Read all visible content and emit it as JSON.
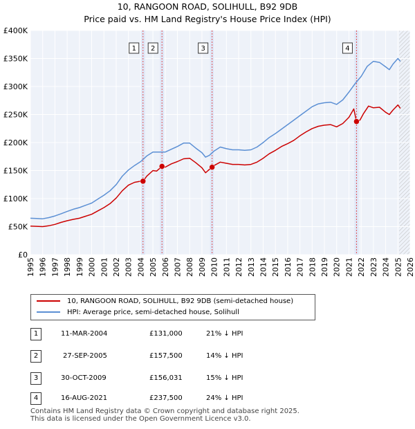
{
  "header": {
    "title": "10, RANGOON ROAD, SOLIHULL, B92 9DB",
    "subtitle": "Price paid vs. HM Land Registry's House Price Index (HPI)"
  },
  "chart_data": {
    "type": "line",
    "title": "10, RANGOON ROAD, SOLIHULL, B92 9DB",
    "subtitle": "Price paid vs. HM Land Registry's House Price Index (HPI)",
    "xlabel": "",
    "ylabel": "",
    "xlim": [
      1995,
      2026
    ],
    "ylim": [
      0,
      400000
    ],
    "y_ticks": [
      0,
      50000,
      100000,
      150000,
      200000,
      250000,
      300000,
      350000,
      400000
    ],
    "y_tick_labels": [
      "£0",
      "£50K",
      "£100K",
      "£150K",
      "£200K",
      "£250K",
      "£300K",
      "£350K",
      "£400K"
    ],
    "x_ticks": [
      1995,
      1996,
      1997,
      1998,
      1999,
      2000,
      2001,
      2002,
      2003,
      2004,
      2005,
      2006,
      2007,
      2008,
      2009,
      2010,
      2011,
      2012,
      2013,
      2014,
      2015,
      2016,
      2017,
      2018,
      2019,
      2020,
      2021,
      2022,
      2023,
      2024,
      2025,
      2026
    ],
    "x_tick_labels": [
      "1995",
      "1996",
      "1997",
      "1998",
      "1999",
      "2000",
      "2001",
      "2002",
      "2003",
      "2004",
      "2005",
      "2006",
      "2007",
      "2008",
      "2009",
      "2010",
      "2011",
      "2012",
      "2013",
      "2014",
      "2015",
      "2016",
      "2017",
      "2018",
      "2019",
      "2020",
      "2021",
      "2022",
      "2023",
      "2024",
      "2025",
      "2026"
    ],
    "grid": true,
    "hatched_from": 2025.1,
    "series": [
      {
        "name": "10, RANGOON ROAD, SOLIHULL, B92 9DB (semi-detached house)",
        "color": "#cc0000",
        "points": [
          [
            1995.0,
            51000
          ],
          [
            1995.5,
            50500
          ],
          [
            1996.0,
            50000
          ],
          [
            1996.5,
            51500
          ],
          [
            1997.0,
            54000
          ],
          [
            1997.5,
            57500
          ],
          [
            1998.0,
            60500
          ],
          [
            1998.5,
            63000
          ],
          [
            1999.0,
            65000
          ],
          [
            1999.5,
            68500
          ],
          [
            2000.0,
            72000
          ],
          [
            2000.5,
            78000
          ],
          [
            2001.0,
            84000
          ],
          [
            2001.5,
            91000
          ],
          [
            2002.0,
            101000
          ],
          [
            2002.5,
            114000
          ],
          [
            2003.0,
            124000
          ],
          [
            2003.5,
            129000
          ],
          [
            2004.0,
            131000
          ],
          [
            2004.2,
            131000
          ],
          [
            2004.5,
            140000
          ],
          [
            2005.0,
            150000
          ],
          [
            2005.3,
            149000
          ],
          [
            2005.74,
            157500
          ],
          [
            2006.0,
            156000
          ],
          [
            2006.5,
            162000
          ],
          [
            2007.0,
            166000
          ],
          [
            2007.5,
            171000
          ],
          [
            2008.0,
            172000
          ],
          [
            2008.5,
            164000
          ],
          [
            2009.0,
            155000
          ],
          [
            2009.3,
            146000
          ],
          [
            2009.5,
            150000
          ],
          [
            2009.83,
            156031
          ],
          [
            2010.0,
            159000
          ],
          [
            2010.5,
            165000
          ],
          [
            2011.0,
            163000
          ],
          [
            2011.5,
            161000
          ],
          [
            2012.0,
            161000
          ],
          [
            2012.5,
            160000
          ],
          [
            2013.0,
            161000
          ],
          [
            2013.5,
            165000
          ],
          [
            2014.0,
            172000
          ],
          [
            2014.5,
            180000
          ],
          [
            2015.0,
            186000
          ],
          [
            2015.5,
            193000
          ],
          [
            2016.0,
            198000
          ],
          [
            2016.5,
            204000
          ],
          [
            2017.0,
            212000
          ],
          [
            2017.5,
            219000
          ],
          [
            2018.0,
            225000
          ],
          [
            2018.5,
            229000
          ],
          [
            2019.0,
            231000
          ],
          [
            2019.5,
            232000
          ],
          [
            2020.0,
            228000
          ],
          [
            2020.5,
            234000
          ],
          [
            2021.0,
            245000
          ],
          [
            2021.4,
            260000
          ],
          [
            2021.62,
            237500
          ],
          [
            2021.9,
            240000
          ],
          [
            2022.2,
            252000
          ],
          [
            2022.6,
            265000
          ],
          [
            2023.0,
            262000
          ],
          [
            2023.5,
            263000
          ],
          [
            2024.0,
            254000
          ],
          [
            2024.3,
            250000
          ],
          [
            2024.6,
            258000
          ],
          [
            2025.0,
            267000
          ],
          [
            2025.2,
            261000
          ]
        ]
      },
      {
        "name": "HPI: Average price, semi-detached house, Solihull",
        "color": "#5b8fd4",
        "points": [
          [
            1995.0,
            65000
          ],
          [
            1995.5,
            64500
          ],
          [
            1996.0,
            64000
          ],
          [
            1996.5,
            66000
          ],
          [
            1997.0,
            69000
          ],
          [
            1997.5,
            73000
          ],
          [
            1998.0,
            77000
          ],
          [
            1998.5,
            81000
          ],
          [
            1999.0,
            84000
          ],
          [
            1999.5,
            88000
          ],
          [
            2000.0,
            92000
          ],
          [
            2000.5,
            99000
          ],
          [
            2001.0,
            106000
          ],
          [
            2001.5,
            114000
          ],
          [
            2002.0,
            125000
          ],
          [
            2002.5,
            140000
          ],
          [
            2003.0,
            151000
          ],
          [
            2003.5,
            159000
          ],
          [
            2004.0,
            166000
          ],
          [
            2004.5,
            176000
          ],
          [
            2005.0,
            183000
          ],
          [
            2005.5,
            183000
          ],
          [
            2006.0,
            183000
          ],
          [
            2006.5,
            188000
          ],
          [
            2007.0,
            193000
          ],
          [
            2007.5,
            199000
          ],
          [
            2008.0,
            199000
          ],
          [
            2008.5,
            190000
          ],
          [
            2009.0,
            182000
          ],
          [
            2009.3,
            174000
          ],
          [
            2009.6,
            177000
          ],
          [
            2010.0,
            185000
          ],
          [
            2010.5,
            192000
          ],
          [
            2011.0,
            189000
          ],
          [
            2011.5,
            187000
          ],
          [
            2012.0,
            187000
          ],
          [
            2012.5,
            186000
          ],
          [
            2013.0,
            187000
          ],
          [
            2013.5,
            192000
          ],
          [
            2014.0,
            200000
          ],
          [
            2014.5,
            209000
          ],
          [
            2015.0,
            216000
          ],
          [
            2015.5,
            224000
          ],
          [
            2016.0,
            232000
          ],
          [
            2016.5,
            240000
          ],
          [
            2017.0,
            248000
          ],
          [
            2017.5,
            256000
          ],
          [
            2018.0,
            264000
          ],
          [
            2018.5,
            269000
          ],
          [
            2019.0,
            271000
          ],
          [
            2019.5,
            272000
          ],
          [
            2020.0,
            268000
          ],
          [
            2020.5,
            276000
          ],
          [
            2021.0,
            290000
          ],
          [
            2021.5,
            305000
          ],
          [
            2022.0,
            318000
          ],
          [
            2022.5,
            336000
          ],
          [
            2023.0,
            345000
          ],
          [
            2023.5,
            343000
          ],
          [
            2024.0,
            335000
          ],
          [
            2024.3,
            330000
          ],
          [
            2024.6,
            340000
          ],
          [
            2025.0,
            350000
          ],
          [
            2025.2,
            345000
          ]
        ]
      }
    ],
    "sales": [
      {
        "label": "1",
        "x": 2004.19,
        "price": 131000
      },
      {
        "label": "2",
        "x": 2005.74,
        "price": 157500
      },
      {
        "label": "3",
        "x": 2009.83,
        "price": 156031
      },
      {
        "label": "4",
        "x": 2021.62,
        "price": 237500
      }
    ]
  },
  "legend": {
    "items": [
      {
        "label": "10, RANGOON ROAD, SOLIHULL, B92 9DB (semi-detached house)",
        "color": "#cc0000"
      },
      {
        "label": "HPI: Average price, semi-detached house, Solihull",
        "color": "#5b8fd4"
      }
    ]
  },
  "transactions": [
    {
      "num": "1",
      "date": "11-MAR-2004",
      "price": "£131,000",
      "hpi": "21% ↓ HPI"
    },
    {
      "num": "2",
      "date": "27-SEP-2005",
      "price": "£157,500",
      "hpi": "14% ↓ HPI"
    },
    {
      "num": "3",
      "date": "30-OCT-2009",
      "price": "£156,031",
      "hpi": "15% ↓ HPI"
    },
    {
      "num": "4",
      "date": "16-AUG-2021",
      "price": "£237,500",
      "hpi": "24% ↓ HPI"
    }
  ],
  "footer": {
    "line1": "Contains HM Land Registry data © Crown copyright and database right 2025.",
    "line2": "This data is licensed under the Open Government Licence v3.0."
  }
}
